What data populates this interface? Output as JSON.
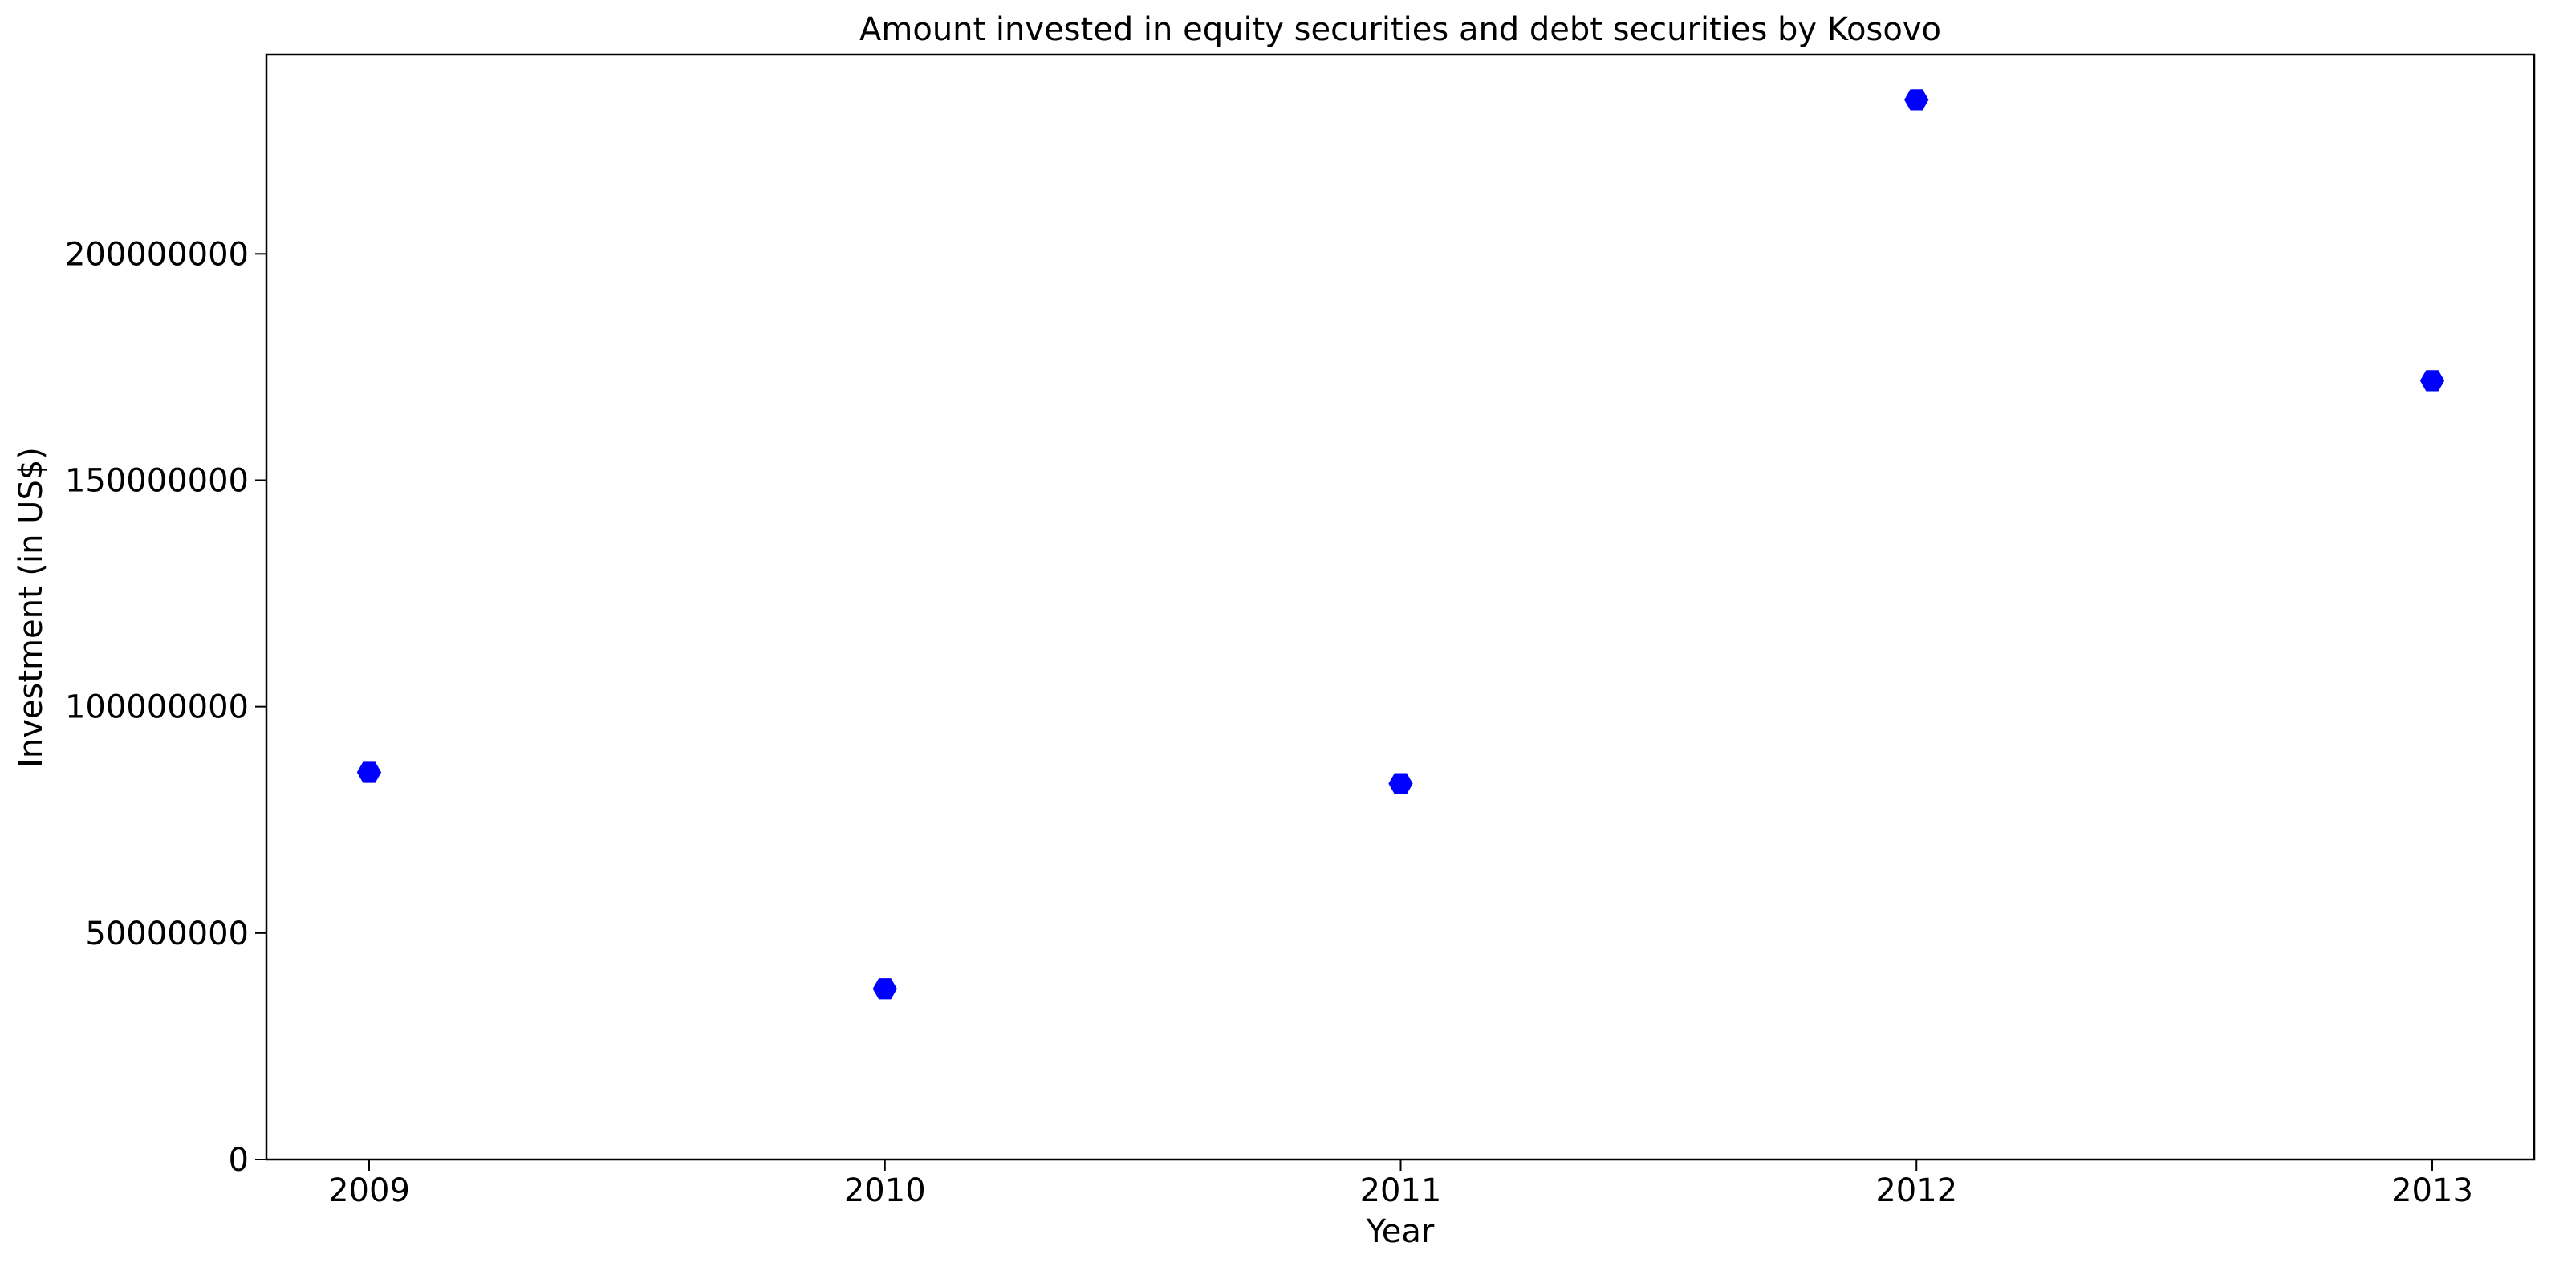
{
  "chart_data": {
    "type": "scatter",
    "title": "Amount invested in equity securities and debt securities by Kosovo",
    "xlabel": "Year",
    "ylabel": "Investment (in US$)",
    "x": [
      "2009",
      "2010",
      "2011",
      "2012",
      "2013"
    ],
    "series": [
      {
        "values": [
          85500000,
          37700000,
          83000000,
          234000000,
          172000000
        ]
      }
    ],
    "ylim": [
      0,
      244000000
    ],
    "yticks": [
      0,
      50000000,
      100000000,
      150000000,
      200000000
    ],
    "ytick_labels": [
      "0",
      "50000000",
      "100000000",
      "150000000",
      "200000000"
    ],
    "marker": "hexagon",
    "marker_color": "#0000ff",
    "grid": false,
    "legend": "none"
  }
}
